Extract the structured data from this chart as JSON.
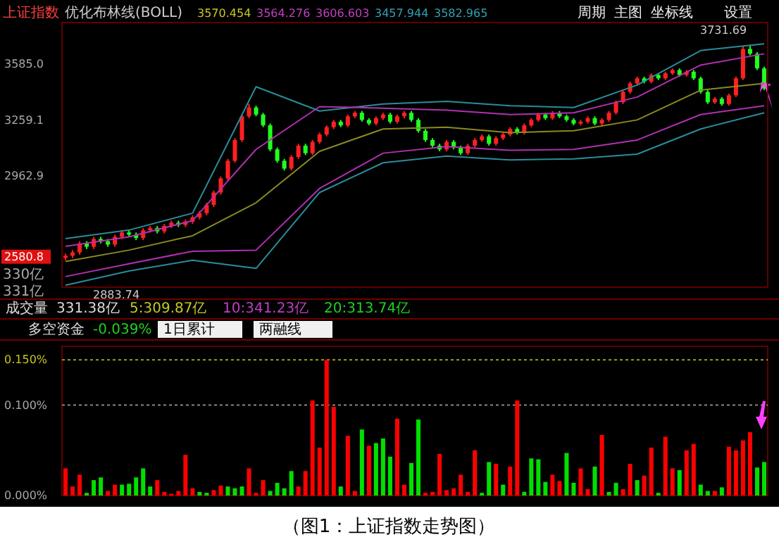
{
  "chart_data": [
    {
      "type": "candlestick",
      "title": "上证指数",
      "subtitle": "优化布林线(BOLL)",
      "log": "y",
      "tick_labels": "y",
      "categories": [
        null,
        null,
        null,
        null,
        null,
        null,
        null,
        null,
        null,
        null,
        null,
        null,
        null,
        null,
        null,
        null,
        null,
        null,
        null,
        null,
        null,
        null,
        null,
        null,
        null,
        null,
        null,
        null,
        null,
        null,
        null,
        null,
        null,
        null,
        null,
        null,
        null,
        null,
        null,
        null,
        null,
        null,
        null,
        null,
        null,
        null,
        null,
        null,
        null,
        null,
        null,
        null,
        null,
        null,
        null,
        null,
        null,
        null,
        null,
        null,
        null,
        null,
        null,
        null,
        null,
        null,
        null,
        null,
        null,
        null,
        null,
        null,
        null,
        null,
        null,
        null,
        null,
        null,
        null,
        null,
        null,
        null,
        null,
        null,
        null,
        null,
        null,
        null,
        null,
        null,
        null,
        null,
        null,
        null,
        null,
        null,
        null,
        null,
        null,
        null
      ],
      "ylim": [
        2450,
        3850
      ],
      "yticks": [
        2580.8,
        2962.9,
        3259.1,
        {
          "value": 3585,
          "label": "3585.0"
        }
      ],
      "ohlc": [
        [
          2575,
          2595,
          2565,
          2585
        ],
        [
          2585,
          2610,
          2575,
          2600
        ],
        [
          2600,
          2650,
          2590,
          2640
        ],
        [
          2640,
          2650,
          2615,
          2625
        ],
        [
          2625,
          2670,
          2615,
          2660
        ],
        [
          2660,
          2670,
          2640,
          2650
        ],
        [
          2650,
          2660,
          2625,
          2635
        ],
        [
          2635,
          2680,
          2625,
          2670
        ],
        [
          2670,
          2700,
          2660,
          2690
        ],
        [
          2690,
          2700,
          2670,
          2680
        ],
        [
          2680,
          2690,
          2655,
          2665
        ],
        [
          2665,
          2710,
          2655,
          2700
        ],
        [
          2700,
          2720,
          2690,
          2710
        ],
        [
          2710,
          2720,
          2685,
          2695
        ],
        [
          2695,
          2730,
          2685,
          2720
        ],
        [
          2720,
          2745,
          2710,
          2735
        ],
        [
          2735,
          2745,
          2715,
          2725
        ],
        [
          2725,
          2750,
          2715,
          2740
        ],
        [
          2740,
          2770,
          2730,
          2760
        ],
        [
          2760,
          2790,
          2750,
          2780
        ],
        [
          2780,
          2830,
          2770,
          2820
        ],
        [
          2820,
          2890,
          2810,
          2880
        ],
        [
          2880,
          2960,
          2870,
          2950
        ],
        [
          2950,
          3050,
          2940,
          3040
        ],
        [
          3040,
          3160,
          3030,
          3150
        ],
        [
          3150,
          3290,
          3140,
          3280
        ],
        [
          3280,
          3350,
          3270,
          3330
        ],
        [
          3330,
          3340,
          3280,
          3290
        ],
        [
          3290,
          3300,
          3220,
          3230
        ],
        [
          3230,
          3240,
          3090,
          3100
        ],
        [
          3100,
          3110,
          3030,
          3040
        ],
        [
          3040,
          3050,
          2990,
          3000
        ],
        [
          3000,
          3070,
          2990,
          3060
        ],
        [
          3060,
          3130,
          3050,
          3120
        ],
        [
          3120,
          3130,
          3070,
          3080
        ],
        [
          3080,
          3150,
          3070,
          3140
        ],
        [
          3140,
          3190,
          3130,
          3180
        ],
        [
          3180,
          3230,
          3170,
          3220
        ],
        [
          3220,
          3260,
          3210,
          3250
        ],
        [
          3250,
          3260,
          3220,
          3230
        ],
        [
          3230,
          3290,
          3220,
          3280
        ],
        [
          3280,
          3310,
          3270,
          3300
        ],
        [
          3300,
          3310,
          3250,
          3260
        ],
        [
          3260,
          3270,
          3230,
          3240
        ],
        [
          3240,
          3280,
          3230,
          3270
        ],
        [
          3270,
          3300,
          3260,
          3290
        ],
        [
          3290,
          3300,
          3240,
          3250
        ],
        [
          3250,
          3290,
          3240,
          3280
        ],
        [
          3280,
          3310,
          3270,
          3300
        ],
        [
          3300,
          3310,
          3250,
          3260
        ],
        [
          3260,
          3270,
          3190,
          3200
        ],
        [
          3200,
          3210,
          3140,
          3150
        ],
        [
          3150,
          3160,
          3110,
          3120
        ],
        [
          3120,
          3130,
          3090,
          3100
        ],
        [
          3100,
          3150,
          3090,
          3140
        ],
        [
          3140,
          3150,
          3100,
          3110
        ],
        [
          3110,
          3120,
          3070,
          3080
        ],
        [
          3080,
          3130,
          3070,
          3120
        ],
        [
          3120,
          3160,
          3110,
          3150
        ],
        [
          3150,
          3180,
          3140,
          3170
        ],
        [
          3170,
          3180,
          3120,
          3130
        ],
        [
          3130,
          3170,
          3120,
          3160
        ],
        [
          3160,
          3190,
          3150,
          3180
        ],
        [
          3180,
          3220,
          3170,
          3210
        ],
        [
          3210,
          3220,
          3180,
          3190
        ],
        [
          3190,
          3240,
          3180,
          3230
        ],
        [
          3230,
          3270,
          3220,
          3260
        ],
        [
          3260,
          3300,
          3250,
          3290
        ],
        [
          3290,
          3300,
          3260,
          3270
        ],
        [
          3270,
          3310,
          3260,
          3300
        ],
        [
          3300,
          3310,
          3270,
          3280
        ],
        [
          3280,
          3290,
          3250,
          3260
        ],
        [
          3260,
          3270,
          3230,
          3240
        ],
        [
          3240,
          3260,
          3230,
          3250
        ],
        [
          3250,
          3280,
          3240,
          3270
        ],
        [
          3270,
          3280,
          3230,
          3240
        ],
        [
          3240,
          3270,
          3230,
          3260
        ],
        [
          3260,
          3310,
          3250,
          3300
        ],
        [
          3300,
          3370,
          3290,
          3360
        ],
        [
          3360,
          3430,
          3350,
          3420
        ],
        [
          3420,
          3480,
          3410,
          3470
        ],
        [
          3470,
          3510,
          3460,
          3500
        ],
        [
          3500,
          3510,
          3470,
          3480
        ],
        [
          3480,
          3530,
          3470,
          3520
        ],
        [
          3520,
          3530,
          3490,
          3500
        ],
        [
          3500,
          3540,
          3490,
          3530
        ],
        [
          3530,
          3560,
          3520,
          3550
        ],
        [
          3550,
          3560,
          3510,
          3520
        ],
        [
          3520,
          3550,
          3510,
          3540
        ],
        [
          3540,
          3550,
          3490,
          3500
        ],
        [
          3500,
          3510,
          3410,
          3420
        ],
        [
          3420,
          3430,
          3350,
          3360
        ],
        [
          3360,
          3390,
          3350,
          3380
        ],
        [
          3380,
          3390,
          3340,
          3350
        ],
        [
          3350,
          3410,
          3340,
          3400
        ],
        [
          3400,
          3510,
          3390,
          3500
        ],
        [
          3500,
          3700,
          3490,
          3680
        ],
        [
          3680,
          3700,
          3640,
          3650
        ],
        [
          3650,
          3660,
          3550,
          3560
        ],
        [
          3560,
          3570,
          3430,
          3440
        ]
      ],
      "annotations": [
        "3570.454",
        "3564.276",
        "3606.603",
        "3457.944",
        "3582.965",
        "3731.69",
        "2883.74",
        "周期",
        "主图",
        "坐标线",
        "设置",
        "330亿",
        "331亿"
      ]
    },
    {
      "type": "line",
      "log": "y",
      "tick_labels": false,
      "ylim": [
        2450,
        3850
      ],
      "categories": [
        null,
        null,
        null,
        null,
        null,
        null,
        null,
        null,
        null,
        null,
        null,
        null
      ],
      "series": [
        {
          "color": "#2a8c9a",
          "values": [
            2662,
            2701,
            2780,
            3450,
            3310,
            3350,
            3365,
            3340,
            3330,
            3460,
            3670,
            3713
          ]
        },
        {
          "color": "#b030b0",
          "values": [
            2627,
            2670,
            2745,
            3100,
            3335,
            3326,
            3315,
            3290,
            3300,
            3390,
            3580,
            3650
          ]
        },
        {
          "color": "#8a8a20",
          "values": [
            2560,
            2610,
            2675,
            2830,
            3090,
            3210,
            3220,
            3190,
            3200,
            3260,
            3430,
            3470
          ]
        },
        {
          "color": "#b030b0",
          "values": [
            2495,
            2550,
            2605,
            2610,
            2900,
            3080,
            3115,
            3095,
            3100,
            3150,
            3290,
            3340
          ]
        },
        {
          "color": "#2a8c9a",
          "values": [
            2458,
            2519,
            2565,
            2530,
            2880,
            3030,
            3065,
            3045,
            3050,
            3075,
            3210,
            3300
          ]
        }
      ]
    },
    {
      "type": "bar",
      "tick_labels": "y",
      "ref_lines": [
        {
          "axis": "y",
          "value": 0.1,
          "line_style": "dotted",
          "color": "#888888"
        },
        {
          "axis": "y",
          "value": 0.15,
          "line_style": "dotted",
          "color": "#a0a020"
        }
      ],
      "categories": [
        null,
        null,
        null,
        null,
        null,
        null,
        null,
        null,
        null,
        null,
        null,
        null,
        null,
        null,
        null,
        null,
        null,
        null,
        null,
        null,
        null,
        null,
        null,
        null,
        null,
        null,
        null,
        null,
        null,
        null,
        null,
        null,
        null,
        null,
        null,
        null,
        null,
        null,
        null,
        null,
        null,
        null,
        null,
        null,
        null,
        null,
        null,
        null,
        null,
        null,
        null,
        null,
        null,
        null,
        null,
        null,
        null,
        null,
        null,
        null,
        null,
        null,
        null,
        null,
        null,
        null,
        null,
        null,
        null,
        null,
        null,
        null,
        null,
        null,
        null,
        null,
        null,
        null,
        null,
        null,
        null,
        null,
        null,
        null,
        null,
        null,
        null,
        null,
        null,
        null,
        null,
        null,
        null,
        null,
        null,
        null,
        null,
        null,
        null,
        null
      ],
      "values": [
        0.03,
        0.01,
        0.023,
        0.003,
        0.017,
        0.02,
        0.005,
        0.012,
        0.012,
        0.013,
        0.02,
        0.03,
        0.01,
        0.017,
        0.004,
        0.002,
        0.005,
        0.045,
        0.008,
        0.004,
        0.003,
        0.006,
        0.011,
        0.01,
        0.008,
        0.01,
        0.03,
        0.003,
        0.017,
        0.005,
        0.014,
        0.008,
        0.027,
        0.01,
        0.027,
        0.105,
        0.053,
        0.15,
        0.098,
        0.01,
        0.066,
        0.005,
        0.073,
        0.055,
        0.058,
        0.063,
        0.043,
        0.085,
        0.012,
        0.036,
        0.084,
        0.003,
        0.004,
        0.046,
        0.006,
        0.008,
        0.023,
        0.004,
        0.05,
        0.003,
        0.037,
        0.035,
        0.012,
        0.032,
        0.105,
        0.004,
        0.041,
        0.04,
        0.015,
        0.023,
        0.016,
        0.047,
        0.014,
        0.03,
        0.007,
        0.032,
        0.067,
        0.004,
        0.014,
        0.007,
        0.035,
        0.017,
        0.022,
        0.053,
        0.003,
        0.065,
        0.03,
        0.028,
        0.05,
        0.057,
        0.012,
        0.005,
        0.005,
        0.009,
        0.054,
        0.05,
        0.061,
        0.07,
        0.031,
        0.037
      ],
      "colors": [
        "#ff0000",
        "#ff0000",
        "#ff0000",
        "#00e000",
        "#00e000",
        "#00e000",
        "#ff0000",
        "#ff0000",
        "#00e000",
        "#00e000",
        "#00e000",
        "#00e000",
        "#00e000",
        "#ff0000",
        "#ff0000",
        "#ff0000",
        "#ff0000",
        "#ff0000",
        "#ff0000",
        "#00e000",
        "#00e000",
        "#ff0000",
        "#ff0000",
        "#00e000",
        "#00e000",
        "#00e000",
        "#ff0000",
        "#ff0000",
        "#ff0000",
        "#00e000",
        "#00e000",
        "#00e000",
        "#00e000",
        "#ff0000",
        "#ff0000",
        "#ff0000",
        "#ff0000",
        "#ff0000",
        "#ff0000",
        "#00e000",
        "#ff0000",
        "#ff0000",
        "#00e000",
        "#ff0000",
        "#00e000",
        "#00e000",
        "#00e000",
        "#ff0000",
        "#ff0000",
        "#00e000",
        "#00e000",
        "#ff0000",
        "#ff0000",
        "#ff0000",
        "#ff0000",
        "#ff0000",
        "#ff0000",
        "#ff0000",
        "#ff0000",
        "#00e000",
        "#00e000",
        "#ff0000",
        "#00e000",
        "#ff0000",
        "#ff0000",
        "#00e000",
        "#00e000",
        "#00e000",
        "#00e000",
        "#ff0000",
        "#ff0000",
        "#00e000",
        "#00e000",
        "#ff0000",
        "#ff0000",
        "#00e000",
        "#ff0000",
        "#00e000",
        "#00e000",
        "#ff0000",
        "#ff0000",
        "#00e000",
        "#ff0000",
        "#ff0000",
        "#00e000",
        "#ff0000",
        "#ff0000",
        "#00e000",
        "#ff0000",
        "#ff0000",
        "#00e000",
        "#00e000",
        "#ff0000",
        "#00e000",
        "#ff0000",
        "#ff0000",
        "#ff0000",
        "#ff0000",
        "#00e000",
        "#00e000"
      ],
      "ylim": [
        0,
        0.165
      ],
      "yticks": [
        {
          "value": 0,
          "label": "0.000%"
        },
        {
          "value": 0.1,
          "label": "0.100%"
        },
        {
          "value": 0.15,
          "label": "0.150%"
        }
      ],
      "annotations": [
        "成交量",
        "331.38亿",
        "5:309.87亿",
        "10:341.23亿",
        "20:313.74亿",
        "多空资金",
        "-0.039%",
        "1日累计",
        "两融线",
        "（图1：上证指数走势图）"
      ]
    }
  ]
}
